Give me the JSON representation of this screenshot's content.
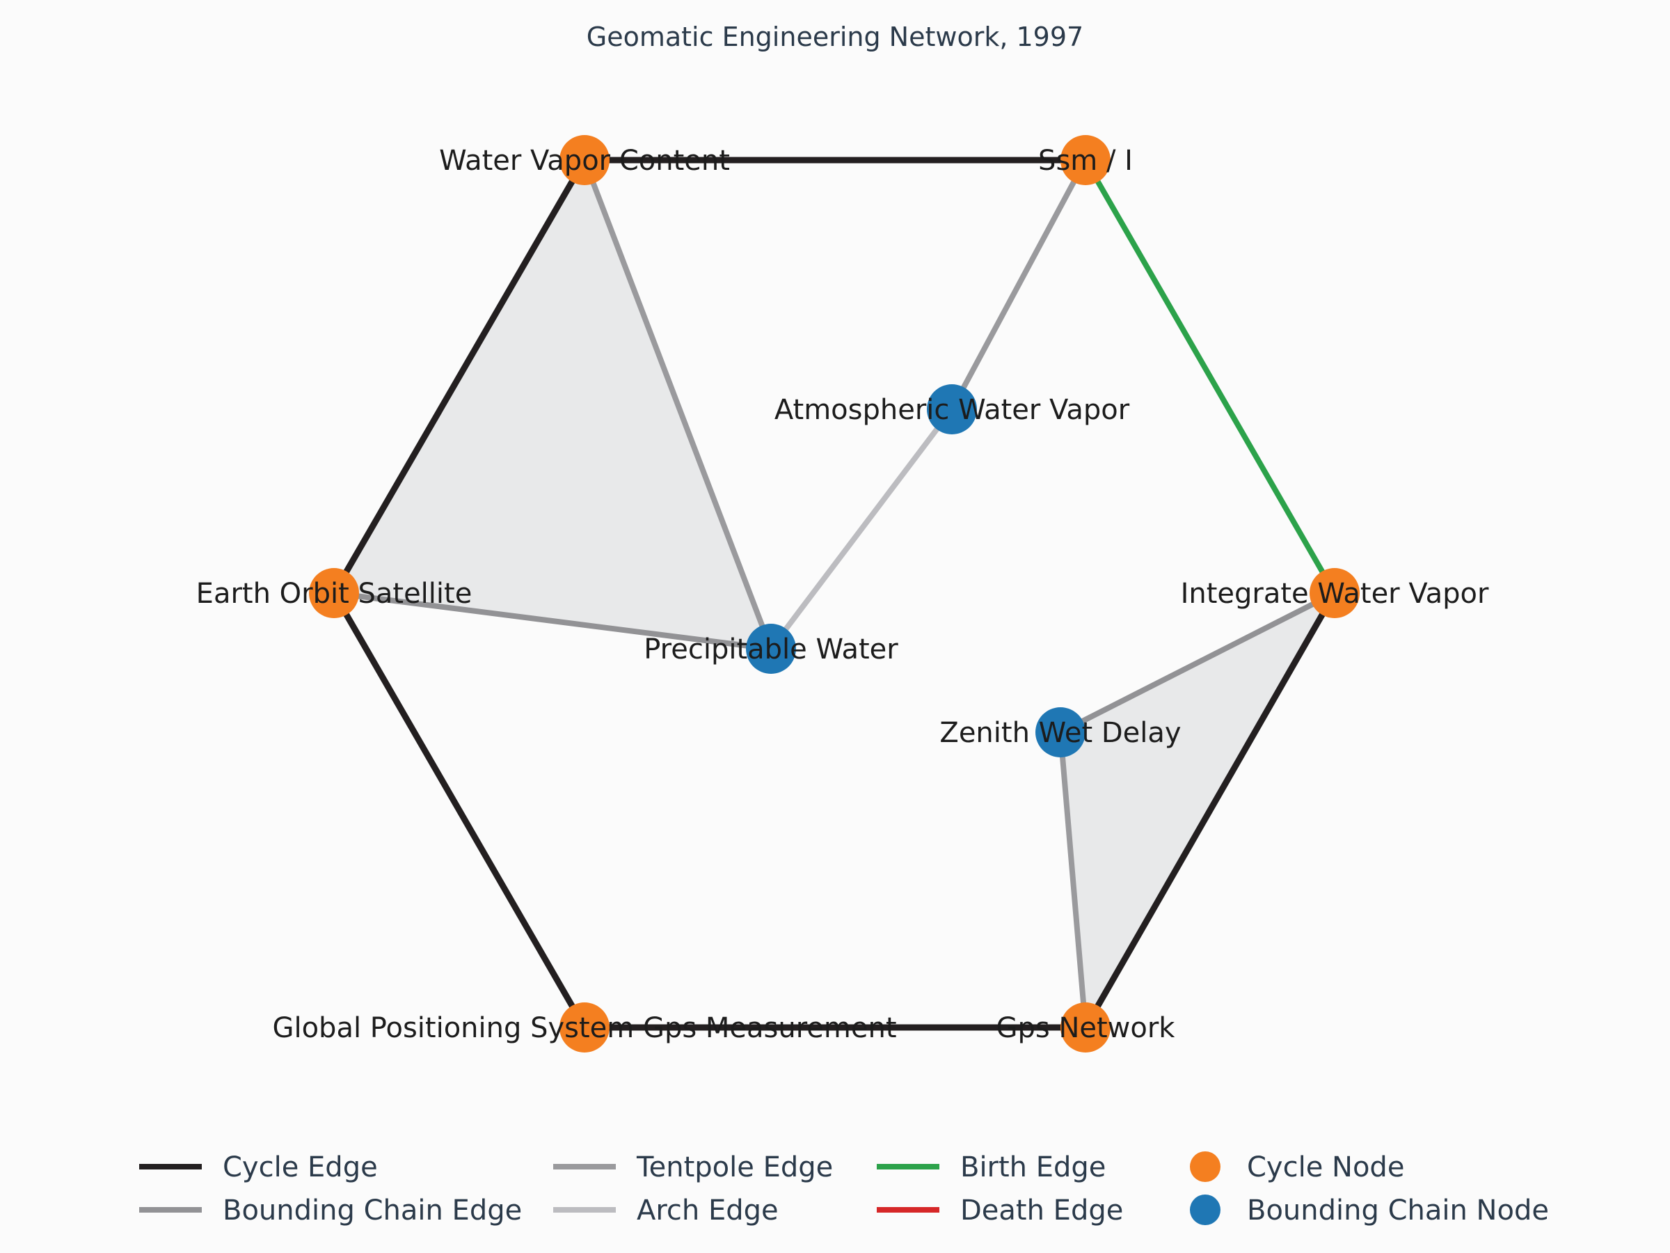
{
  "title": "Geomatic Engineering Network, 1997",
  "colors": {
    "background": "#fbfbfb",
    "cycle_edge": "#231f20",
    "bounding_chain_edge": "#929295",
    "tentpole_edge": "#9a9a9d",
    "arch_edge": "#bcbcc0",
    "birth_edge": "#2ca24a",
    "death_edge": "#d62728",
    "cycle_node": "#f47f20",
    "bounding_chain_node": "#1f77b4",
    "face_fill": "#e8e9ea"
  },
  "nodes": [
    {
      "id": "wvc",
      "label": "Water Vapor Content",
      "kind": "cycle"
    },
    {
      "id": "ssm",
      "label": "Ssm / I",
      "kind": "cycle"
    },
    {
      "id": "iwv",
      "label": "Integrate Water Vapor",
      "kind": "cycle"
    },
    {
      "id": "gpsn",
      "label": "Gps Network",
      "kind": "cycle"
    },
    {
      "id": "gpsm",
      "label": "Global Positioning System Gps Measurement",
      "kind": "cycle"
    },
    {
      "id": "eos",
      "label": "Earth Orbit Satellite",
      "kind": "cycle"
    },
    {
      "id": "awv",
      "label": "Atmospheric Water Vapor",
      "kind": "bounding"
    },
    {
      "id": "pw",
      "label": "Precipitable Water",
      "kind": "bounding"
    },
    {
      "id": "zwd",
      "label": "Zenith Wet Delay",
      "kind": "bounding"
    }
  ],
  "edges": [
    {
      "from": "wvc",
      "to": "ssm",
      "kind": "cycle"
    },
    {
      "from": "iwv",
      "to": "gpsn",
      "kind": "cycle"
    },
    {
      "from": "gpsn",
      "to": "gpsm",
      "kind": "cycle"
    },
    {
      "from": "gpsm",
      "to": "eos",
      "kind": "cycle"
    },
    {
      "from": "eos",
      "to": "wvc",
      "kind": "cycle"
    },
    {
      "from": "ssm",
      "to": "iwv",
      "kind": "birth"
    },
    {
      "from": "wvc",
      "to": "pw",
      "kind": "tentpole"
    },
    {
      "from": "eos",
      "to": "pw",
      "kind": "bounding"
    },
    {
      "from": "ssm",
      "to": "awv",
      "kind": "tentpole"
    },
    {
      "from": "awv",
      "to": "pw",
      "kind": "arch"
    },
    {
      "from": "iwv",
      "to": "zwd",
      "kind": "bounding"
    },
    {
      "from": "zwd",
      "to": "gpsn",
      "kind": "tentpole"
    }
  ],
  "faces": [
    [
      "wvc",
      "eos",
      "pw"
    ],
    [
      "iwv",
      "zwd",
      "gpsn"
    ]
  ],
  "legend": {
    "items": [
      {
        "label": "Cycle Edge",
        "type": "line",
        "kind": "cycle"
      },
      {
        "label": "Bounding Chain Edge",
        "type": "line",
        "kind": "bounding"
      },
      {
        "label": "Tentpole Edge",
        "type": "line",
        "kind": "tentpole"
      },
      {
        "label": "Arch Edge",
        "type": "line",
        "kind": "arch"
      },
      {
        "label": "Birth Edge",
        "type": "line",
        "kind": "birth"
      },
      {
        "label": "Death Edge",
        "type": "line",
        "kind": "death"
      },
      {
        "label": "Cycle Node",
        "type": "dot",
        "kind": "cycle"
      },
      {
        "label": "Bounding Chain Node",
        "type": "dot",
        "kind": "bounding"
      }
    ]
  }
}
